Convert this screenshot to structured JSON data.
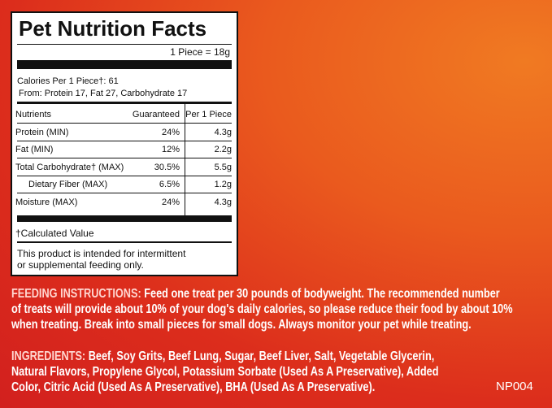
{
  "panel": {
    "title": "Pet Nutrition Facts",
    "serving": "1 Piece = 18g",
    "calories": "Calories Per 1 Piece†: 61",
    "from": "From: Protein 17, Fat 27, Carbohydrate 17",
    "headers": [
      "Nutrients",
      "Guaranteed",
      "Per 1 Piece"
    ],
    "rows": [
      [
        "Protein (MIN)",
        "24%",
        "4.3g"
      ],
      [
        "Fat (MIN)",
        "12%",
        "2.2g"
      ],
      [
        "Total Carbohydrate† (MAX)",
        "30.5%",
        "5.5g"
      ],
      [
        "Dietary Fiber (MAX)",
        "6.5%",
        "1.2g"
      ],
      [
        "Moisture (MAX)",
        "24%",
        "4.3g"
      ]
    ],
    "footnote": "†Calculated Value",
    "note": [
      "This product is intended for intermittent",
      "or supplemental feeding only."
    ]
  },
  "feeding": {
    "label": "FEEDING INSTRUCTIONS:",
    "lines": [
      "Feed one treat per 30 pounds of bodyweight. The recommended number",
      "of treats will provide about 10% of your dog's daily calories, so please reduce their food by about 10%",
      "when treating. Break into small pieces for small dogs. Always monitor your pet while treating."
    ]
  },
  "ingredients": {
    "label": "INGREDIENTS:",
    "lines": [
      "Beef, Soy Grits, Beef Lung, Sugar, Beef Liver, Salt, Vegetable Glycerin,",
      "Natural Flavors, Propylene Glycol, Potassium Sorbate (Used As A Preservative), Added",
      "Color, Citric Acid (Used As A Preservative), BHA (Used As A Preservative)."
    ]
  },
  "code": "NP004"
}
